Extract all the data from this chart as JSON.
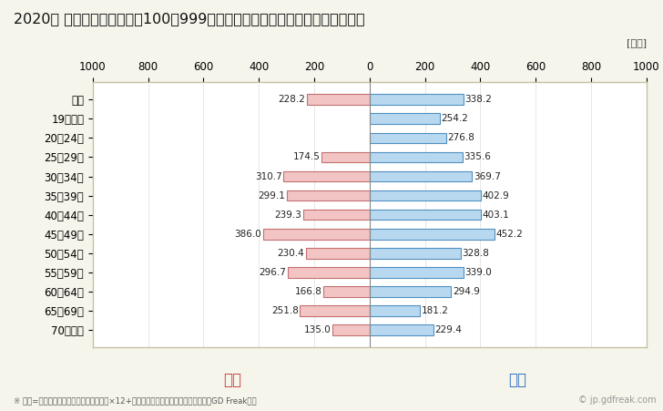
{
  "title": "2020年 民間企業（従業者数100〜999人）フルタイム労働者の男女別平均年収",
  "unit_label": "[万円]",
  "categories": [
    "全体",
    "19歳以下",
    "20〜24歳",
    "25〜29歳",
    "30〜34歳",
    "35〜39歳",
    "40〜44歳",
    "45〜49歳",
    "50〜54歳",
    "55〜59歳",
    "60〜64歳",
    "65〜69歳",
    "70歳以上"
  ],
  "female_values": [
    228.2,
    0,
    0,
    174.5,
    310.7,
    299.1,
    239.3,
    386.0,
    230.4,
    296.7,
    166.8,
    251.8,
    135.0
  ],
  "male_values": [
    338.2,
    254.2,
    276.8,
    335.6,
    369.7,
    402.9,
    403.1,
    452.2,
    328.8,
    339.0,
    294.9,
    181.2,
    229.4
  ],
  "female_color": "#f2c4c4",
  "male_color": "#b8d8f0",
  "female_border_color": "#c47070",
  "male_border_color": "#5090c0",
  "female_label": "女性",
  "male_label": "男性",
  "female_label_color": "#d04040",
  "male_label_color": "#3070c0",
  "xlim": [
    -1000,
    1000
  ],
  "xticks": [
    -1000,
    -800,
    -600,
    -400,
    -200,
    0,
    200,
    400,
    600,
    800,
    1000
  ],
  "xticklabels": [
    "1000",
    "800",
    "600",
    "400",
    "200",
    "0",
    "200",
    "400",
    "600",
    "800",
    "1000"
  ],
  "footnote": "※ 年収=「きまって支給する現金給与額」×12+「年間賞与その他特別給与額」としてGD Freak推計",
  "watermark": "© jp.gdfreak.com",
  "bg_color": "#f5f5eb",
  "plot_bg_color": "#ffffff",
  "border_color": "#c8c0a0",
  "title_fontsize": 11.5,
  "tick_fontsize": 8.5,
  "bar_height": 0.55
}
